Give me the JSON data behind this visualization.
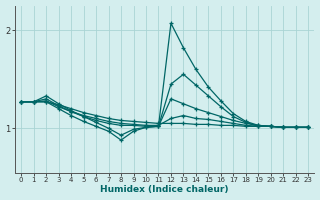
{
  "xlabel": "Humidex (Indice chaleur)",
  "xlim": [
    -0.5,
    23.5
  ],
  "ylim": [
    0.55,
    2.25
  ],
  "yticks": [
    1,
    2
  ],
  "xticks": [
    0,
    1,
    2,
    3,
    4,
    5,
    6,
    7,
    8,
    9,
    10,
    11,
    12,
    13,
    14,
    15,
    16,
    17,
    18,
    19,
    20,
    21,
    22,
    23
  ],
  "bg_color": "#d4eeee",
  "line_color": "#006666",
  "grid_color": "#aad4d4",
  "lines": [
    [
      1.27,
      1.27,
      1.27,
      1.24,
      1.2,
      1.16,
      1.13,
      1.1,
      1.08,
      1.07,
      1.06,
      1.05,
      1.05,
      1.05,
      1.04,
      1.04,
      1.03,
      1.03,
      1.02,
      1.02,
      1.02,
      1.01,
      1.01,
      1.01
    ],
    [
      1.27,
      1.27,
      1.28,
      1.22,
      1.17,
      1.13,
      1.1,
      1.07,
      1.05,
      1.04,
      1.03,
      1.03,
      1.1,
      1.13,
      1.1,
      1.09,
      1.07,
      1.05,
      1.03,
      1.02,
      1.02,
      1.01,
      1.01,
      1.01
    ],
    [
      1.27,
      1.27,
      1.3,
      1.23,
      1.17,
      1.12,
      1.08,
      1.05,
      1.03,
      1.03,
      1.02,
      1.02,
      1.3,
      1.25,
      1.2,
      1.16,
      1.12,
      1.08,
      1.05,
      1.03,
      1.02,
      1.01,
      1.01,
      1.01
    ],
    [
      1.27,
      1.27,
      1.33,
      1.25,
      1.18,
      1.12,
      1.06,
      1.0,
      0.93,
      0.99,
      1.01,
      1.02,
      2.07,
      1.82,
      1.6,
      1.42,
      1.28,
      1.15,
      1.07,
      1.03,
      1.02,
      1.01,
      1.01,
      1.01
    ],
    [
      1.27,
      1.27,
      1.27,
      1.2,
      1.13,
      1.07,
      1.02,
      0.97,
      0.88,
      0.97,
      1.01,
      1.02,
      1.45,
      1.55,
      1.44,
      1.33,
      1.22,
      1.12,
      1.06,
      1.02,
      1.02,
      1.01,
      1.01,
      1.01
    ]
  ]
}
